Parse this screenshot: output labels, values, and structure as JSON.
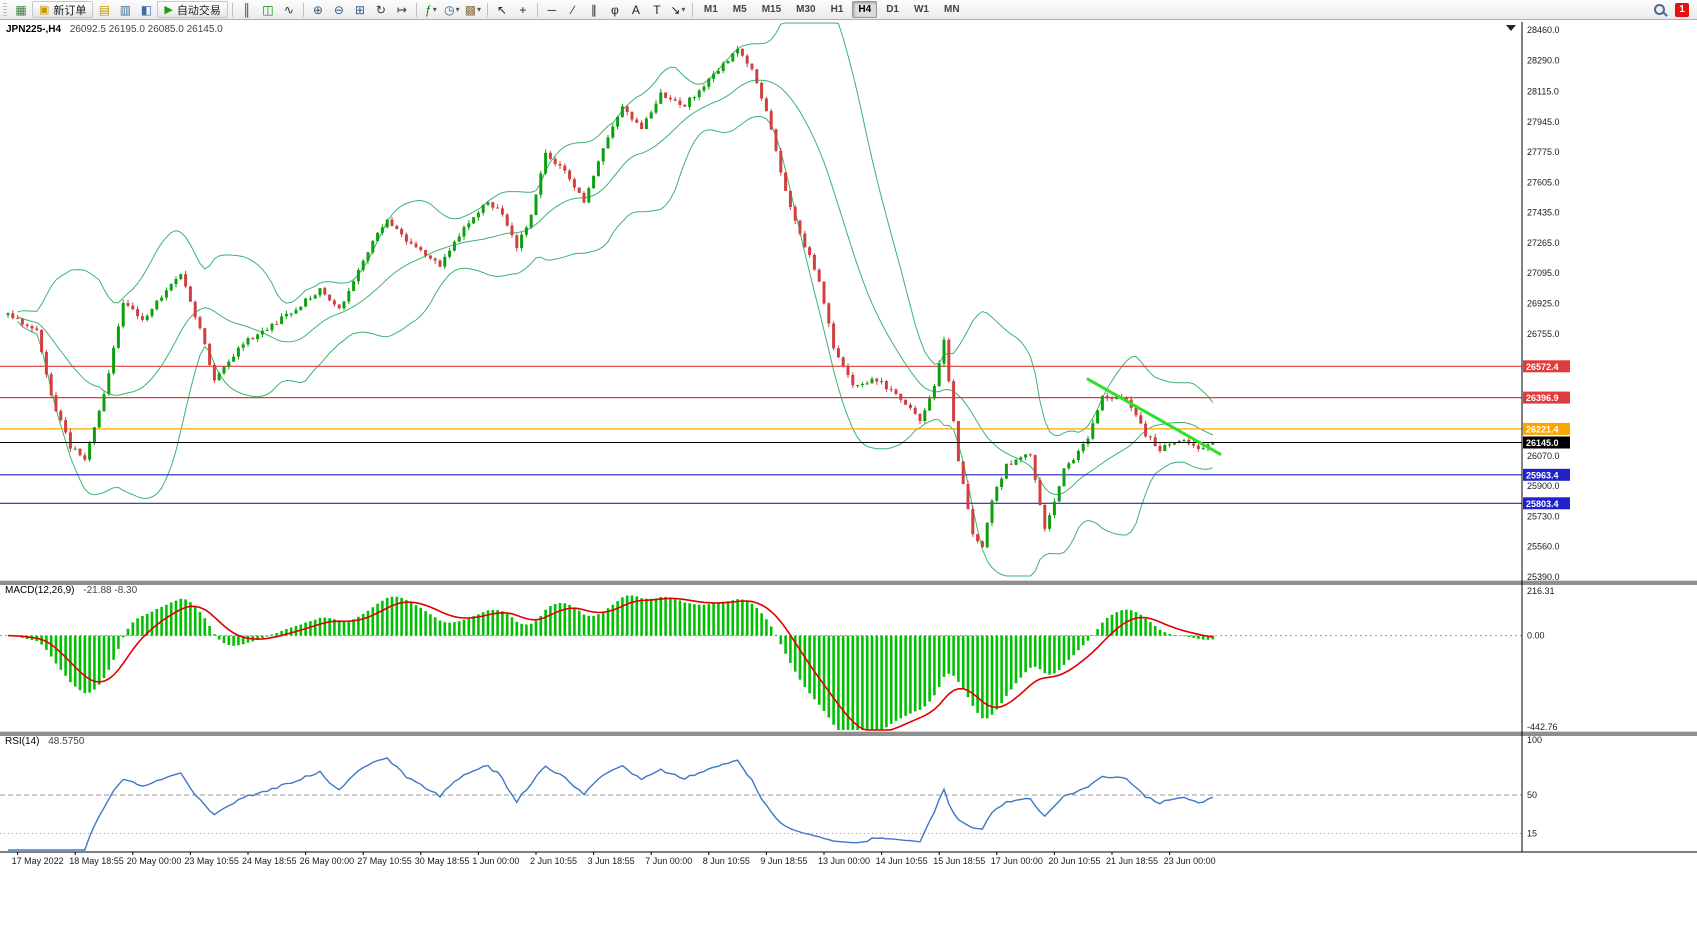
{
  "toolbar": {
    "items": [
      {
        "type": "icon",
        "name": "new-chart-icon",
        "glyph": "▦",
        "color": "#3a7d3a"
      },
      {
        "type": "btn",
        "name": "new-order-button",
        "glyph": "▣",
        "glyph_color": "#c99700",
        "label": "新订单"
      },
      {
        "type": "icon",
        "name": "profiles-icon",
        "glyph": "▤",
        "color": "#c99700"
      },
      {
        "type": "icon",
        "name": "market-watch-icon",
        "glyph": "▥",
        "color": "#3a6ea5"
      },
      {
        "type": "icon",
        "name": "navigator-icon",
        "glyph": "◧",
        "color": "#3a6ea5"
      },
      {
        "type": "btn",
        "name": "autotrading-button",
        "glyph": "▶",
        "glyph_color": "#15a015",
        "label": "自动交易"
      },
      {
        "type": "sep"
      },
      {
        "type": "icon",
        "name": "bar-chart-icon",
        "glyph": "║",
        "color": "#333333"
      },
      {
        "type": "icon",
        "name": "candlestick-chart-icon",
        "glyph": "◫",
        "color": "#0a8a0a"
      },
      {
        "type": "icon",
        "name": "line-chart-icon",
        "glyph": "∿",
        "color": "#333333"
      },
      {
        "type": "sep"
      },
      {
        "type": "icon",
        "name": "zoom-in-icon",
        "glyph": "⊕",
        "color": "#335c85"
      },
      {
        "type": "icon",
        "name": "zoom-out-icon",
        "glyph": "⊖",
        "color": "#335c85"
      },
      {
        "type": "icon",
        "name": "tile-windows-icon",
        "glyph": "⊞",
        "color": "#335c85"
      },
      {
        "type": "icon",
        "name": "auto-scroll-icon",
        "glyph": "↻",
        "color": "#333333"
      },
      {
        "type": "icon",
        "name": "chart-shift-icon",
        "glyph": "↦",
        "color": "#333333"
      },
      {
        "type": "sep"
      },
      {
        "type": "icon",
        "name": "indicators-icon",
        "glyph": "ƒ",
        "color": "#0a8a0a",
        "caret": true
      },
      {
        "type": "icon",
        "name": "periods-icon",
        "glyph": "◷",
        "color": "#335c85",
        "caret": true
      },
      {
        "type": "icon",
        "name": "templates-icon",
        "glyph": "▩",
        "color": "#8a6d3b",
        "caret": true
      },
      {
        "type": "sep"
      },
      {
        "type": "icon",
        "name": "cursor-icon",
        "glyph": "↖",
        "color": "#222222"
      },
      {
        "type": "icon",
        "name": "crosshair-icon",
        "glyph": "+",
        "color": "#222222"
      },
      {
        "type": "sep"
      },
      {
        "type": "icon",
        "name": "horizontal-line-icon",
        "glyph": "─",
        "color": "#222222"
      },
      {
        "type": "icon",
        "name": "trendline-tool-icon",
        "glyph": "∕",
        "color": "#222222"
      },
      {
        "type": "icon",
        "name": "channel-icon",
        "glyph": "∥",
        "color": "#222222"
      },
      {
        "type": "icon",
        "name": "fibonacci-icon",
        "glyph": "φ",
        "color": "#222222"
      },
      {
        "type": "icon",
        "name": "text-icon",
        "glyph": "A",
        "color": "#222222"
      },
      {
        "type": "icon",
        "name": "label-icon",
        "glyph": "T",
        "color": "#222222"
      },
      {
        "type": "icon",
        "name": "arrows-icon",
        "glyph": "↘",
        "color": "#222222",
        "caret": true
      },
      {
        "type": "sep"
      },
      {
        "type": "tf",
        "label": "M1"
      },
      {
        "type": "tf",
        "label": "M5"
      },
      {
        "type": "tf",
        "label": "M15"
      },
      {
        "type": "tf",
        "label": "M30"
      },
      {
        "type": "tf",
        "label": "H1"
      },
      {
        "type": "tf",
        "label": "H4",
        "active": true
      },
      {
        "type": "tf",
        "label": "D1"
      },
      {
        "type": "tf",
        "label": "W1"
      },
      {
        "type": "tf",
        "label": "MN"
      }
    ],
    "right": {
      "badge": "1"
    }
  },
  "chart": {
    "title": "JPN225-,H4",
    "ohlc_text": "26092.5 26195.0 26085.0 26145.0",
    "price_axis": {
      "top_price": 28460.0,
      "bottom_price": 25390.0,
      "ticks": [
        "28460.0",
        "28290.0",
        "28115.0",
        "27945.0",
        "27775.0",
        "27605.0",
        "27435.0",
        "27265.0",
        "27095.0",
        "26925.0",
        "26755.0",
        "26070.0",
        "25900.0",
        "25730.0",
        "25560.0",
        "25390.0"
      ]
    },
    "hlines": [
      {
        "price": 26572.4,
        "color": "#E03C3C",
        "badge": "26572.4",
        "current": false
      },
      {
        "price": 26396.9,
        "color": "#E03C3C",
        "badge": "26396.9",
        "current": false
      },
      {
        "price": 26221.4,
        "color": "#FFA500",
        "badge": "26221.4",
        "current": false
      },
      {
        "price": 26145.0,
        "color": "#000000",
        "badge": "26145.0",
        "current": true
      },
      {
        "price": 25963.4,
        "color": "#2222CC",
        "badge": "25963.4",
        "current": false
      },
      {
        "price": 25803.4,
        "color": "#2222CC",
        "badge": "25803.4",
        "current": false
      }
    ],
    "trendline": {
      "i1": 225,
      "p1": 26500,
      "i2": 252.5,
      "p2": 26080,
      "color": "#2EE02E"
    },
    "colors": {
      "candle_up": "#0FA00F",
      "candle_down": "#D04040",
      "bollinger": "#3CB371",
      "macd_hist": "#00C000",
      "macd_signal": "#E00000",
      "rsi_line": "#3E76C8"
    }
  },
  "chart_data": {
    "type": "candlestick",
    "symbol": "JPN225-",
    "timeframe": "H4",
    "bars": 252,
    "last_close": 26145.0,
    "close_noise": 26,
    "wick_noise": 20,
    "seed": 20220623,
    "price_anchors": [
      [
        0,
        26860
      ],
      [
        6,
        26780
      ],
      [
        9,
        26400
      ],
      [
        13,
        26120
      ],
      [
        16,
        26060
      ],
      [
        20,
        26410
      ],
      [
        24,
        26940
      ],
      [
        28,
        26830
      ],
      [
        33,
        27000
      ],
      [
        36,
        27090
      ],
      [
        40,
        26780
      ],
      [
        43,
        26500
      ],
      [
        46,
        26610
      ],
      [
        50,
        26720
      ],
      [
        55,
        26800
      ],
      [
        61,
        26920
      ],
      [
        65,
        27000
      ],
      [
        69,
        26890
      ],
      [
        75,
        27220
      ],
      [
        79,
        27400
      ],
      [
        83,
        27280
      ],
      [
        88,
        27180
      ],
      [
        90,
        27140
      ],
      [
        95,
        27340
      ],
      [
        100,
        27500
      ],
      [
        103,
        27420
      ],
      [
        106,
        27240
      ],
      [
        109,
        27420
      ],
      [
        112,
        27760
      ],
      [
        116,
        27670
      ],
      [
        120,
        27500
      ],
      [
        124,
        27790
      ],
      [
        128,
        28040
      ],
      [
        132,
        27900
      ],
      [
        136,
        28100
      ],
      [
        141,
        28040
      ],
      [
        146,
        28180
      ],
      [
        152,
        28350
      ],
      [
        155,
        28230
      ],
      [
        158,
        28010
      ],
      [
        162,
        27560
      ],
      [
        165,
        27310
      ],
      [
        169,
        27060
      ],
      [
        172,
        26670
      ],
      [
        176,
        26470
      ],
      [
        181,
        26500
      ],
      [
        186,
        26390
      ],
      [
        190,
        26270
      ],
      [
        193,
        26450
      ],
      [
        195,
        26720
      ],
      [
        198,
        26050
      ],
      [
        201,
        25630
      ],
      [
        203,
        25560
      ],
      [
        205,
        25820
      ],
      [
        208,
        26020
      ],
      [
        213,
        26080
      ],
      [
        216,
        25660
      ],
      [
        220,
        25990
      ],
      [
        225,
        26160
      ],
      [
        228,
        26410
      ],
      [
        233,
        26390
      ],
      [
        237,
        26190
      ],
      [
        240,
        26110
      ],
      [
        244,
        26160
      ],
      [
        248,
        26110
      ],
      [
        251,
        26145
      ]
    ],
    "bollinger": {
      "period": 20,
      "deviation": 2
    },
    "macd": {
      "fast": 12,
      "slow": 26,
      "signal": 9,
      "display_gain": 1.35
    },
    "rsi": {
      "period": 14
    }
  },
  "macd_panel": {
    "label": "MACD(12,26,9)",
    "values": "-21.88 -8.30",
    "axis": [
      "216.31",
      "0.00",
      "-442.76"
    ],
    "range": [
      216.31,
      -442.76
    ]
  },
  "rsi_panel": {
    "label": "RSI(14)",
    "value": "48.5750",
    "axis": [
      "100",
      "50",
      "15"
    ],
    "levels": [
      50,
      15
    ]
  },
  "xaxis": {
    "first_index": 2,
    "step": 12,
    "labels": [
      "17 May 2022",
      "18 May 18:55",
      "20 May 00:00",
      "23 May 10:55",
      "24 May 18:55",
      "26 May 00:00",
      "27 May 10:55",
      "30 May 18:55",
      "1 Jun 00:00",
      "2 Jun 10:55",
      "3 Jun 18:55",
      "7 Jun 00:00",
      "8 Jun 10:55",
      "9 Jun 18:55",
      "13 Jun 00:00",
      "14 Jun 10:55",
      "15 Jun 18:55",
      "17 Jun 00:00",
      "20 Jun 10:55",
      "21 Jun 18:55",
      "23 Jun 00:00"
    ]
  }
}
